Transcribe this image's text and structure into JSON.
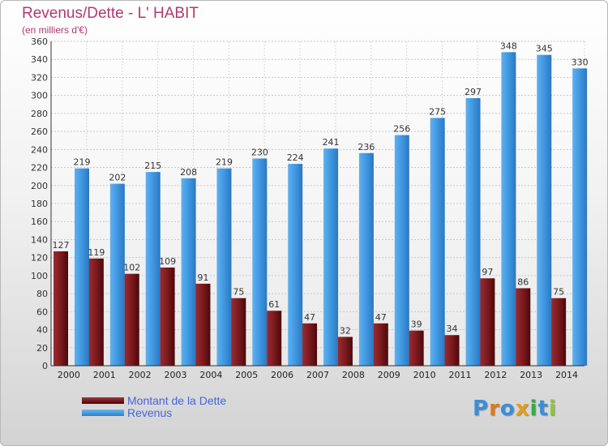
{
  "title": "Revenus/Dette - L' HABIT",
  "subtitle": "(en milliers d'€)",
  "logo": {
    "letters": [
      {
        "ch": "P",
        "color": "#3a8fd8"
      },
      {
        "ch": "r",
        "color": "#e07a1a"
      },
      {
        "ch": "o",
        "color": "#3a8fd8"
      },
      {
        "ch": "x",
        "color": "#e0a01a"
      },
      {
        "ch": "i",
        "color": "#3aa84a"
      },
      {
        "ch": "t",
        "color": "#3a8fd8"
      },
      {
        "ch": "i",
        "color": "#8cc83a"
      }
    ]
  },
  "chart_data": {
    "type": "bar",
    "categories": [
      "2000",
      "2001",
      "2002",
      "2003",
      "2004",
      "2005",
      "2006",
      "2007",
      "2008",
      "2009",
      "2010",
      "2011",
      "2012",
      "2013",
      "2014"
    ],
    "series": [
      {
        "name": "Montant de la Dette",
        "color": "#7a1a1e",
        "values": [
          127,
          119,
          102,
          109,
          91,
          75,
          61,
          47,
          32,
          47,
          39,
          34,
          97,
          86,
          75
        ]
      },
      {
        "name": "Revenus",
        "color": "#3f97e0",
        "values": [
          219,
          202,
          215,
          208,
          219,
          230,
          224,
          241,
          236,
          256,
          275,
          297,
          348,
          345,
          330
        ]
      }
    ],
    "ylim": [
      0,
      360
    ],
    "yticks": [
      0,
      20,
      40,
      60,
      80,
      100,
      120,
      140,
      160,
      180,
      200,
      220,
      240,
      260,
      280,
      300,
      320,
      340,
      360
    ],
    "grid": true,
    "legend": "bottom-left"
  }
}
